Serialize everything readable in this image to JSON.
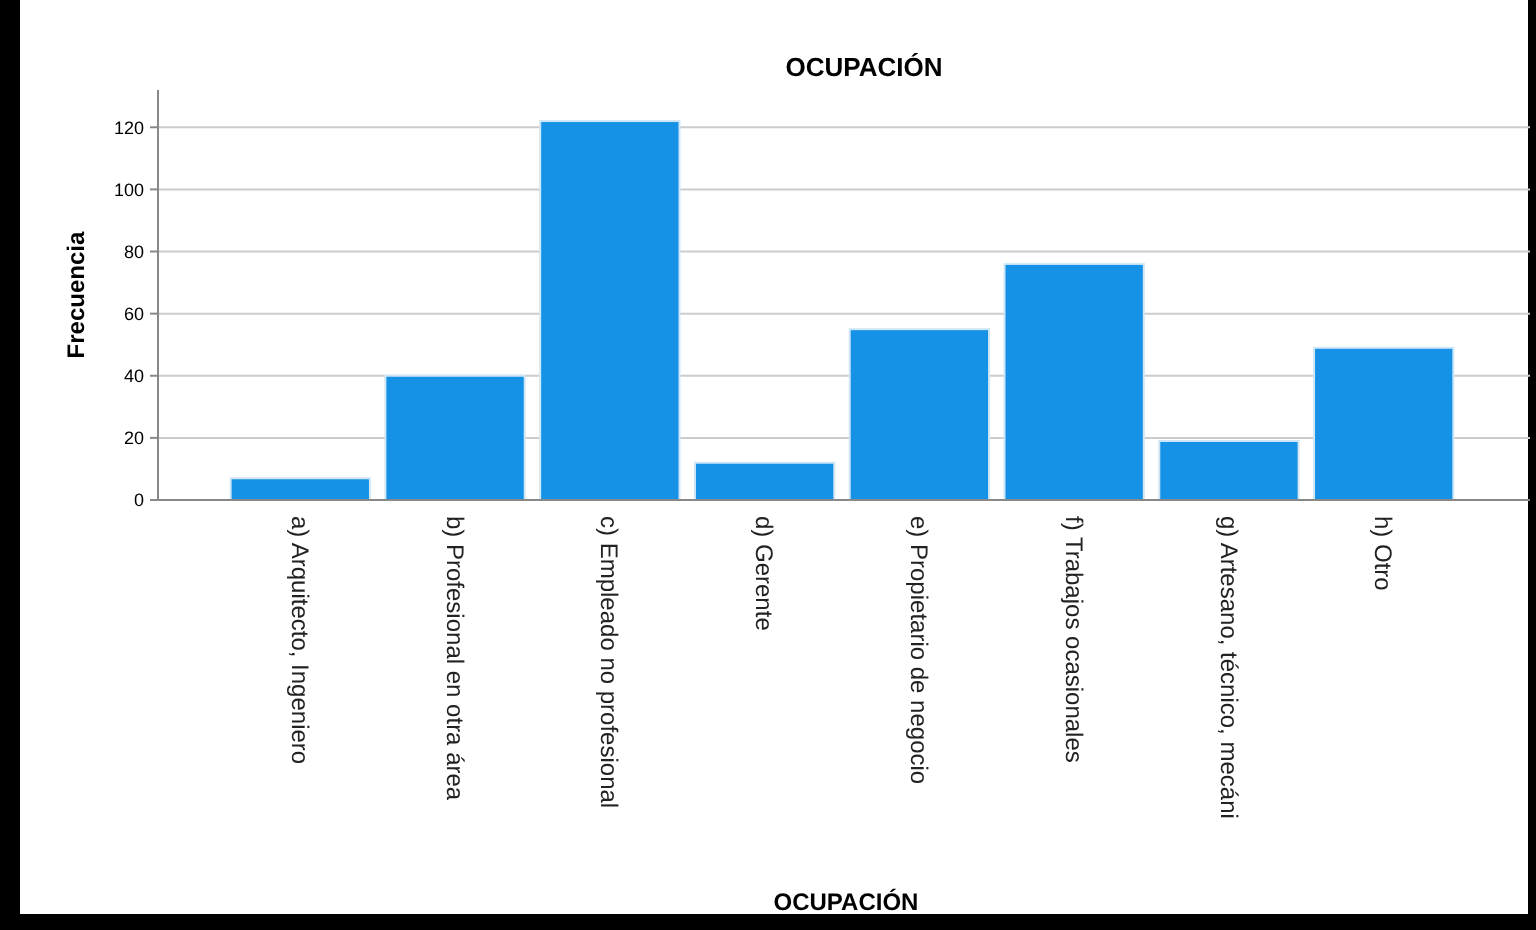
{
  "chart_data": {
    "type": "bar",
    "title": "OCUPACIÓN",
    "xlabel": "OCUPACIÓN",
    "ylabel": "Frecuencia",
    "categories": [
      "a) Arquitecto, Ingeniero",
      "b) Profesional en otra área",
      "c) Empleado no profesional",
      "d) Gerente",
      "e) Propietario de negocio",
      "f) Trabajos ocasionales",
      "g) Artesano, técnico, mecáni",
      "h) Otro"
    ],
    "values": [
      7,
      40,
      122,
      12,
      55,
      76,
      19,
      49
    ],
    "color": "#1591e6",
    "ylim": [
      0,
      132
    ],
    "yticks": [
      0,
      20,
      40,
      60,
      80,
      100,
      120
    ],
    "grid": "y"
  }
}
